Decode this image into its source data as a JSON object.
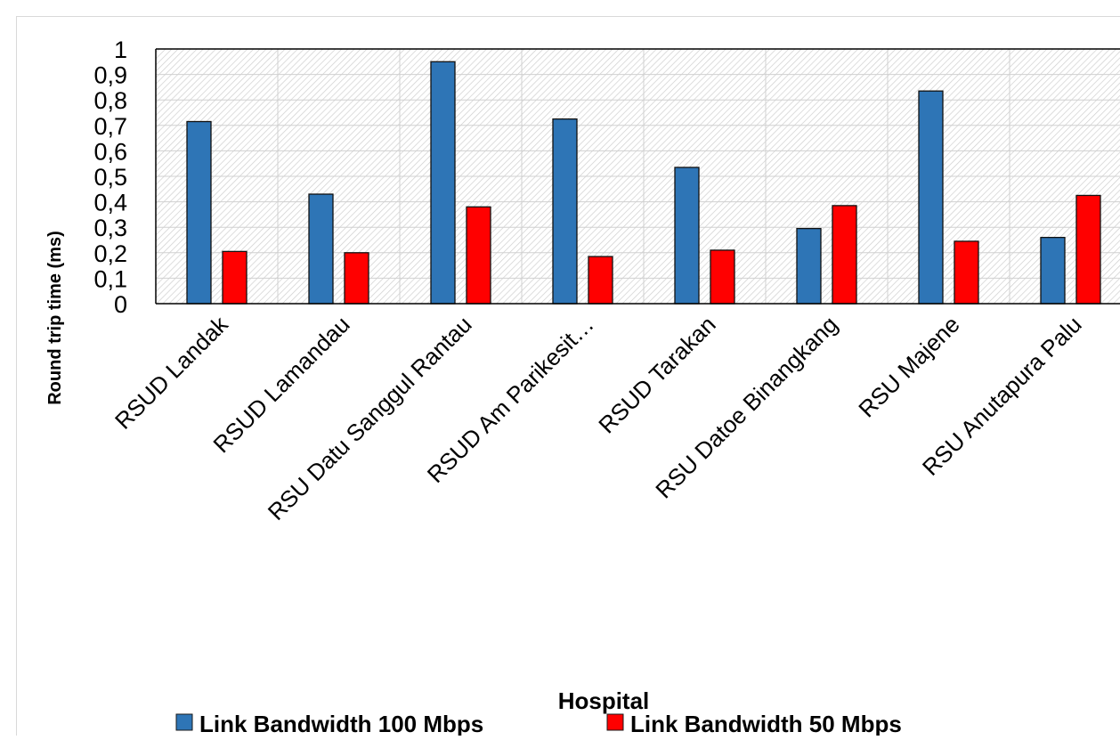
{
  "chart_data": {
    "type": "bar",
    "title": "",
    "xlabel": "Hospital",
    "ylabel": "Round trip time (ms)",
    "ylim": [
      0,
      1
    ],
    "yticks": [
      "0",
      "0,1",
      "0,2",
      "0,3",
      "0,4",
      "0,5",
      "0,6",
      "0,7",
      "0,8",
      "0,9",
      "1"
    ],
    "categories": [
      "RSUD Landak",
      "RSUD Lamandau",
      "RSU Datu Sanggul Rantau",
      "RSUD Am Parikesit…",
      "RSUD Tarakan",
      "RSU Datoe Binangkang",
      "RSU Majene",
      "RSU Anutapura Palu"
    ],
    "series": [
      {
        "name": "Link Bandwidth 100 Mbps",
        "color": "#2E75B6",
        "values": [
          0.715,
          0.43,
          0.95,
          0.725,
          0.535,
          0.295,
          0.835,
          0.26
        ]
      },
      {
        "name": "Link Bandwidth 50 Mbps",
        "color": "#FF0000",
        "values": [
          0.205,
          0.2,
          0.38,
          0.185,
          0.21,
          0.385,
          0.245,
          0.425
        ]
      }
    ],
    "grid": true,
    "legend": "bottom"
  }
}
